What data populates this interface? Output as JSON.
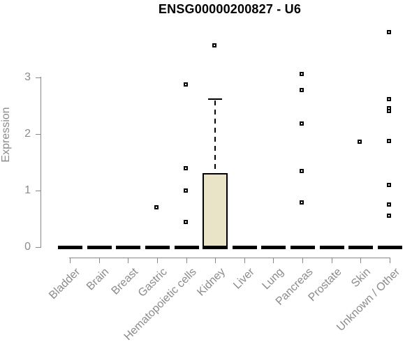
{
  "chart_data": {
    "type": "boxplot",
    "title": "ENSG00000200827 - U6",
    "ylabel": "Expression",
    "xlabel": "",
    "yticks": [
      0,
      1,
      2,
      3
    ],
    "ylim": [
      0,
      3.95
    ],
    "grid": false,
    "legend": "none",
    "categories": [
      "Bladder",
      "Brain",
      "Breast",
      "Gastric",
      "Hematopoietic cells",
      "Kidney",
      "Liver",
      "Lung",
      "Pancreas",
      "Prostate",
      "Skin",
      "Unknown / Other"
    ],
    "boxes": [
      {
        "category": "Bladder",
        "q1": 0,
        "median": 0,
        "q3": 0,
        "whisker_low": 0,
        "whisker_high": 0,
        "outliers": []
      },
      {
        "category": "Brain",
        "q1": 0,
        "median": 0,
        "q3": 0,
        "whisker_low": 0,
        "whisker_high": 0,
        "outliers": []
      },
      {
        "category": "Breast",
        "q1": 0,
        "median": 0,
        "q3": 0,
        "whisker_low": 0,
        "whisker_high": 0,
        "outliers": []
      },
      {
        "category": "Gastric",
        "q1": 0,
        "median": 0,
        "q3": 0,
        "whisker_low": 0,
        "whisker_high": 0,
        "outliers": [
          0.7
        ]
      },
      {
        "category": "Hematopoietic cells",
        "q1": 0,
        "median": 0,
        "q3": 0,
        "whisker_low": 0,
        "whisker_high": 0,
        "outliers": [
          2.87,
          1.39,
          1.0,
          0.44
        ]
      },
      {
        "category": "Kidney",
        "q1": 0,
        "median": 0,
        "q3": 1.31,
        "whisker_low": 0,
        "whisker_high": 2.61,
        "outliers": [
          3.56
        ]
      },
      {
        "category": "Liver",
        "q1": 0,
        "median": 0,
        "q3": 0,
        "whisker_low": 0,
        "whisker_high": 0,
        "outliers": []
      },
      {
        "category": "Lung",
        "q1": 0,
        "median": 0,
        "q3": 0,
        "whisker_low": 0,
        "whisker_high": 0,
        "outliers": []
      },
      {
        "category": "Pancreas",
        "q1": 0,
        "median": 0,
        "q3": 0,
        "whisker_low": 0,
        "whisker_high": 0,
        "outliers": [
          3.06,
          2.77,
          2.18,
          1.34,
          0.79
        ]
      },
      {
        "category": "Prostate",
        "q1": 0,
        "median": 0,
        "q3": 0,
        "whisker_low": 0,
        "whisker_high": 0,
        "outliers": []
      },
      {
        "category": "Skin",
        "q1": 0,
        "median": 0,
        "q3": 0,
        "whisker_low": 0,
        "whisker_high": 0,
        "outliers": [
          1.86
        ]
      },
      {
        "category": "Unknown / Other",
        "q1": 0,
        "median": 0,
        "q3": 0,
        "whisker_low": 0,
        "whisker_high": 0,
        "outliers": [
          3.8,
          2.61,
          2.46,
          2.41,
          1.87,
          1.1,
          0.75,
          0.55
        ]
      }
    ],
    "colors": {
      "box_fill": "#e9e4c8",
      "box_line": "#000000",
      "axis_line": "#878787",
      "axis_text": "#8b8b8b",
      "title_text": "#000000",
      "background": "#ffffff"
    }
  }
}
